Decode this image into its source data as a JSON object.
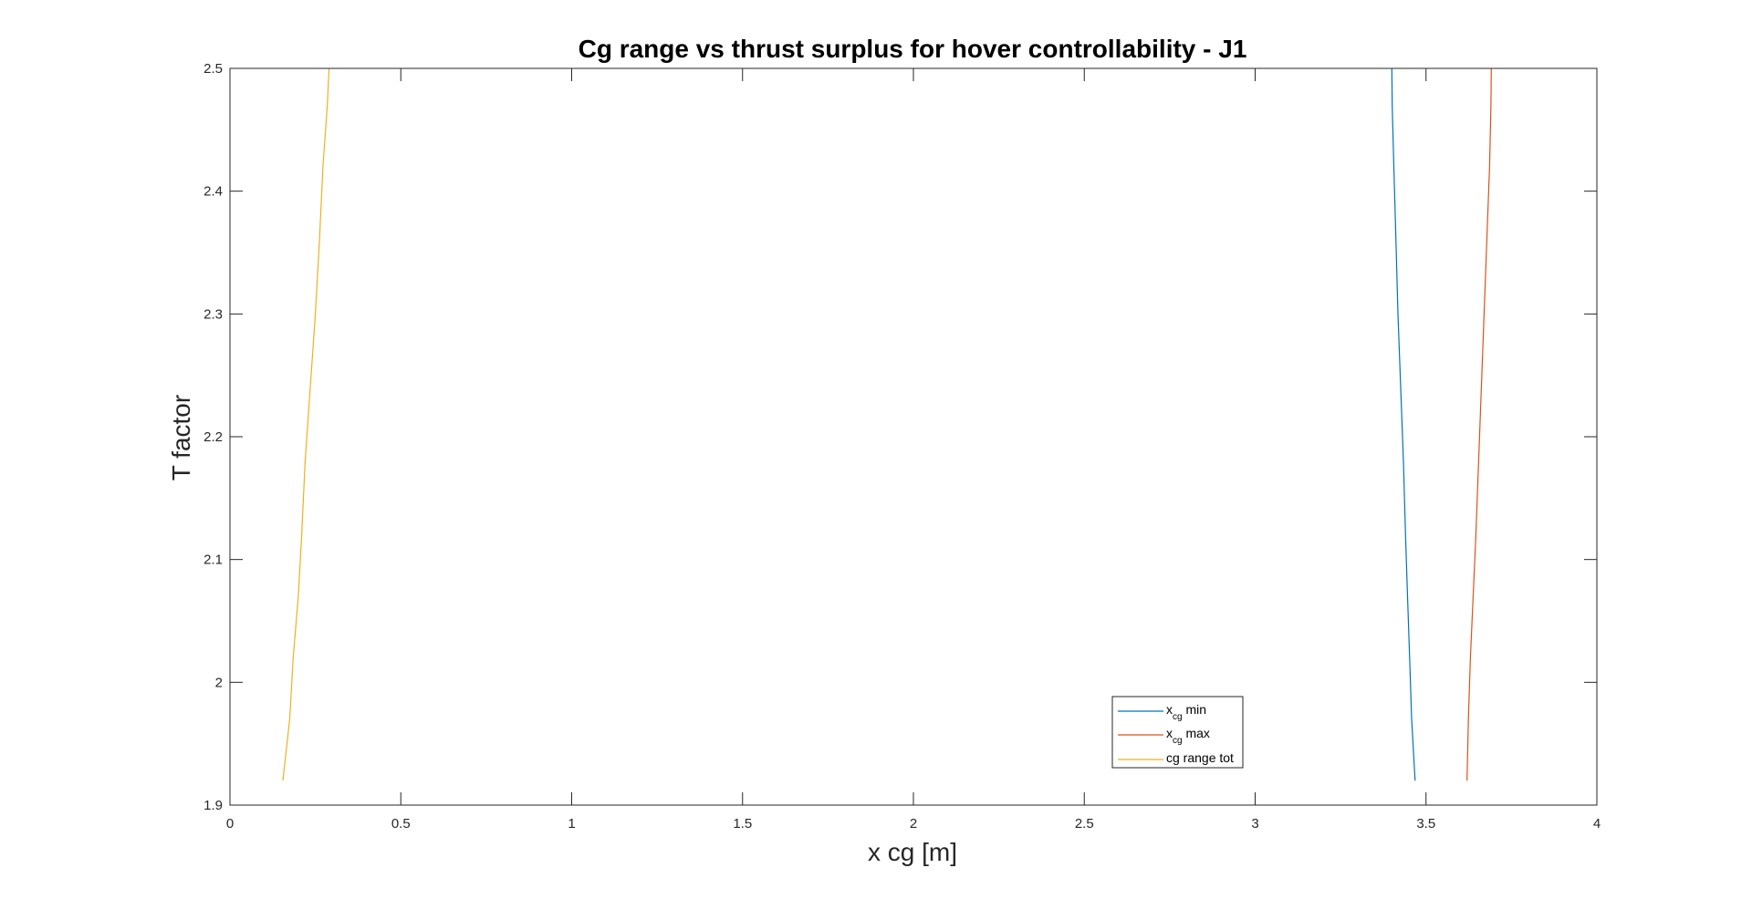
{
  "chart_data": {
    "type": "line",
    "title": "Cg range vs thrust surplus for hover controllability - J1",
    "xlabel": "x cg [m]",
    "ylabel": "T factor",
    "xlim": [
      0,
      4
    ],
    "ylim": [
      1.9,
      2.5
    ],
    "xticks": [
      0,
      0.5,
      1,
      1.5,
      2,
      2.5,
      3,
      3.5,
      4
    ],
    "xtick_labels": [
      "0",
      "0.5",
      "1",
      "1.5",
      "2",
      "2.5",
      "3",
      "3.5",
      "4"
    ],
    "yticks": [
      1.9,
      2,
      2.1,
      2.2,
      2.3,
      2.4,
      2.5
    ],
    "ytick_labels": [
      "1.9",
      "2",
      "2.1",
      "2.2",
      "2.3",
      "2.4",
      "2.5"
    ],
    "grid": false,
    "legend_position": "bottom-center",
    "series": [
      {
        "name_main": "x",
        "name_sub": "cg",
        "name_suffix": " min",
        "color": "#0072BD",
        "x": [
          3.468,
          3.458,
          3.452,
          3.446,
          3.44,
          3.434,
          3.426,
          3.418,
          3.412,
          3.406,
          3.401,
          3.4
        ],
        "y": [
          1.92,
          1.97,
          2.02,
          2.07,
          2.12,
          2.18,
          2.24,
          2.3,
          2.36,
          2.42,
          2.47,
          2.5
        ]
      },
      {
        "name_main": "x",
        "name_sub": "cg",
        "name_suffix": " max",
        "color": "#D95319",
        "x": [
          3.62,
          3.624,
          3.63,
          3.638,
          3.646,
          3.654,
          3.662,
          3.67,
          3.678,
          3.686,
          3.69,
          3.691
        ],
        "y": [
          1.92,
          1.97,
          2.02,
          2.07,
          2.12,
          2.18,
          2.24,
          2.3,
          2.36,
          2.42,
          2.47,
          2.5
        ]
      },
      {
        "name_main": "cg range tot",
        "name_sub": "",
        "name_suffix": "",
        "color": "#EDB120",
        "x": [
          0.155,
          0.175,
          0.185,
          0.2,
          0.21,
          0.22,
          0.235,
          0.25,
          0.262,
          0.272,
          0.285,
          0.29
        ],
        "y": [
          1.92,
          1.97,
          2.02,
          2.07,
          2.12,
          2.18,
          2.24,
          2.3,
          2.36,
          2.42,
          2.47,
          2.5
        ]
      }
    ]
  }
}
